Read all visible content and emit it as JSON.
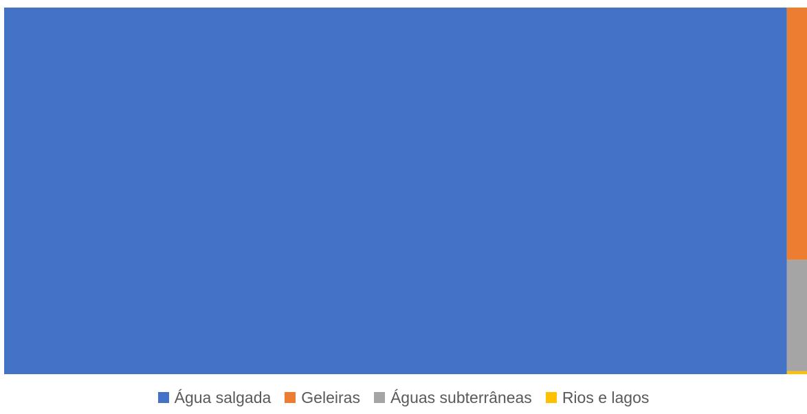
{
  "chart_data": {
    "type": "treemap",
    "title": "",
    "series": [
      {
        "name": "Água salgada",
        "value": 97.5,
        "color": "#4472C4"
      },
      {
        "name": "Geleiras",
        "value": 1.72,
        "color": "#ED7D31"
      },
      {
        "name": "Águas subterrâneas",
        "value": 0.76,
        "color": "#A5A5A5"
      },
      {
        "name": "Rios e lagos",
        "value": 0.02,
        "color": "#FFC000"
      }
    ],
    "legend_position": "bottom"
  },
  "legend": {
    "items": [
      {
        "label": "Água salgada",
        "color": "#4472C4"
      },
      {
        "label": "Geleiras",
        "color": "#ED7D31"
      },
      {
        "label": "Águas subterrâneas",
        "color": "#A5A5A5"
      },
      {
        "label": "Rios e lagos",
        "color": "#FFC000"
      }
    ]
  }
}
